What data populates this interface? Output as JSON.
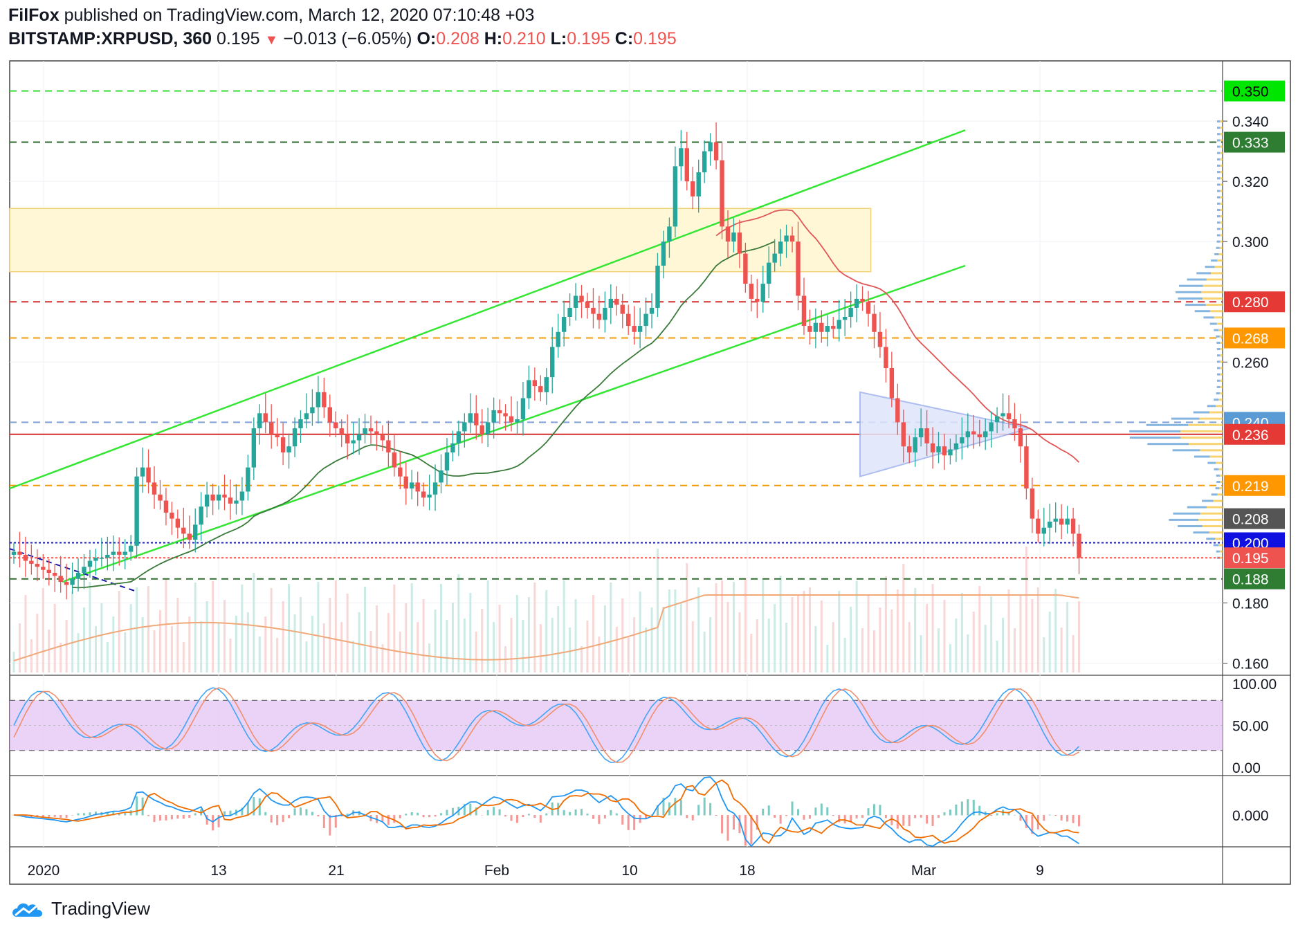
{
  "header": {
    "author": "FilFox",
    "published_text": "published on TradingView.com, March 12, 2020 07:10:48 +03",
    "symbol": "BITSTAMP:XRPUSD, 360",
    "last": "0.195",
    "change_arrow": "▼",
    "change": "−0.013 (−6.05%)",
    "o_label": "O:",
    "o_value": "0.208",
    "h_label": "H:",
    "h_value": "0.210",
    "l_label": "L:",
    "l_value": "0.195",
    "c_label": "C:",
    "c_value": "0.195"
  },
  "footer": {
    "brand": "TradingView",
    "logo_icon": "tradingview-cloud-icon"
  },
  "colors": {
    "up": "#26a69a",
    "down": "#ef5350",
    "channel": "#33e633",
    "ma_red": "#e05555",
    "ma_green": "#3a7a3a",
    "zone": "#fff7d6",
    "triangle": "#dfe6fb",
    "stoch_band": "#e6c8f5"
  },
  "chart_data": [
    {
      "type": "candlestick",
      "x_ticks": [
        "2020",
        "13",
        "21",
        "Feb",
        "10",
        "18",
        "Mar",
        "9"
      ],
      "y_ticks": [
        "0.340",
        "0.320",
        "0.300",
        "0.260",
        "0.180",
        "0.160"
      ],
      "ylim": [
        0.156,
        0.36
      ],
      "price_labels": [
        {
          "value": 0.35,
          "text": "0.350",
          "color": "#00e600",
          "text_color": "#000000",
          "line": "dashed",
          "line_color": "#33dd33"
        },
        {
          "value": 0.333,
          "text": "0.333",
          "color": "#2e7d32",
          "text_color": "#ffffff",
          "line": "dashed",
          "line_color": "#2e6b2e"
        },
        {
          "value": 0.28,
          "text": "0.280",
          "color": "#e53935",
          "text_color": "#ffffff",
          "line": "dashed",
          "line_color": "#d32f2f"
        },
        {
          "value": 0.268,
          "text": "0.268",
          "color": "#ff9800",
          "text_color": "#ffffff",
          "line": "dashed",
          "line_color": "#f29b00"
        },
        {
          "value": 0.24,
          "text": "0.240",
          "color": "#5b9bd5",
          "text_color": "#ffffff",
          "line": "dashed",
          "line_color": "#7f9fd8"
        },
        {
          "value": 0.236,
          "text": "0.236",
          "color": "#e53935",
          "text_color": "#ffffff",
          "line": "solid",
          "line_color": "#d32f2f"
        },
        {
          "value": 0.219,
          "text": "0.219",
          "color": "#ff9800",
          "text_color": "#ffffff",
          "line": "dashed",
          "line_color": "#f29b00"
        },
        {
          "value": 0.208,
          "text": "0.208",
          "color": "#555555",
          "text_color": "#ffffff",
          "line": "none",
          "line_color": ""
        },
        {
          "value": 0.2,
          "text": "0.200",
          "color": "#1010e0",
          "text_color": "#ffffff",
          "line": "dotted",
          "line_color": "#1a1aa8"
        },
        {
          "value": 0.195,
          "text": "0.195",
          "color": "#ef5350",
          "text_color": "#ffffff",
          "line": "dotted",
          "line_color": "#ef5350"
        },
        {
          "value": 0.188,
          "text": "0.188",
          "color": "#2e7d32",
          "text_color": "#ffffff",
          "line": "dashed",
          "line_color": "#2e6b2e"
        }
      ],
      "zone": {
        "from": 0.29,
        "to": 0.311,
        "x_start": 0,
        "x_end": 0.71
      },
      "close_series": [
        0.197,
        0.196,
        0.194,
        0.193,
        0.192,
        0.191,
        0.19,
        0.189,
        0.187,
        0.186,
        0.188,
        0.19,
        0.192,
        0.194,
        0.195,
        0.195,
        0.196,
        0.197,
        0.196,
        0.197,
        0.199,
        0.222,
        0.225,
        0.22,
        0.216,
        0.214,
        0.21,
        0.208,
        0.205,
        0.203,
        0.201,
        0.206,
        0.212,
        0.216,
        0.214,
        0.216,
        0.215,
        0.213,
        0.214,
        0.217,
        0.225,
        0.238,
        0.243,
        0.24,
        0.236,
        0.235,
        0.23,
        0.232,
        0.238,
        0.241,
        0.243,
        0.245,
        0.25,
        0.245,
        0.24,
        0.238,
        0.236,
        0.233,
        0.234,
        0.236,
        0.238,
        0.237,
        0.236,
        0.234,
        0.23,
        0.225,
        0.222,
        0.218,
        0.22,
        0.217,
        0.215,
        0.216,
        0.22,
        0.224,
        0.23,
        0.233,
        0.237,
        0.24,
        0.243,
        0.239,
        0.236,
        0.24,
        0.244,
        0.243,
        0.242,
        0.24,
        0.241,
        0.248,
        0.254,
        0.252,
        0.25,
        0.255,
        0.265,
        0.27,
        0.275,
        0.278,
        0.282,
        0.28,
        0.278,
        0.276,
        0.274,
        0.278,
        0.281,
        0.279,
        0.276,
        0.272,
        0.27,
        0.272,
        0.276,
        0.278,
        0.292,
        0.3,
        0.305,
        0.325,
        0.331,
        0.32,
        0.315,
        0.323,
        0.33,
        0.333,
        0.327,
        0.305,
        0.3,
        0.303,
        0.296,
        0.286,
        0.281,
        0.28,
        0.286,
        0.293,
        0.296,
        0.3,
        0.302,
        0.3,
        0.282,
        0.272,
        0.27,
        0.273,
        0.27,
        0.272,
        0.271,
        0.274,
        0.275,
        0.278,
        0.281,
        0.28,
        0.276,
        0.27,
        0.265,
        0.258,
        0.248,
        0.24,
        0.232,
        0.23,
        0.235,
        0.238,
        0.233,
        0.23,
        0.232,
        0.229,
        0.231,
        0.233,
        0.235,
        0.237,
        0.236,
        0.235,
        0.237,
        0.24,
        0.242,
        0.243,
        0.241,
        0.238,
        0.232,
        0.218,
        0.208,
        0.203,
        0.205,
        0.207,
        0.208,
        0.206,
        0.208,
        0.203,
        0.195
      ],
      "volume_osc_label": "",
      "oscillators": [
        {
          "name": "",
          "y_ticks": [
            "100.00",
            "50.00",
            "0.00"
          ],
          "band": [
            20,
            80
          ],
          "ylim": [
            0,
            100
          ]
        },
        {
          "name": "",
          "y_ticks": [
            "0.000"
          ]
        }
      ]
    }
  ]
}
